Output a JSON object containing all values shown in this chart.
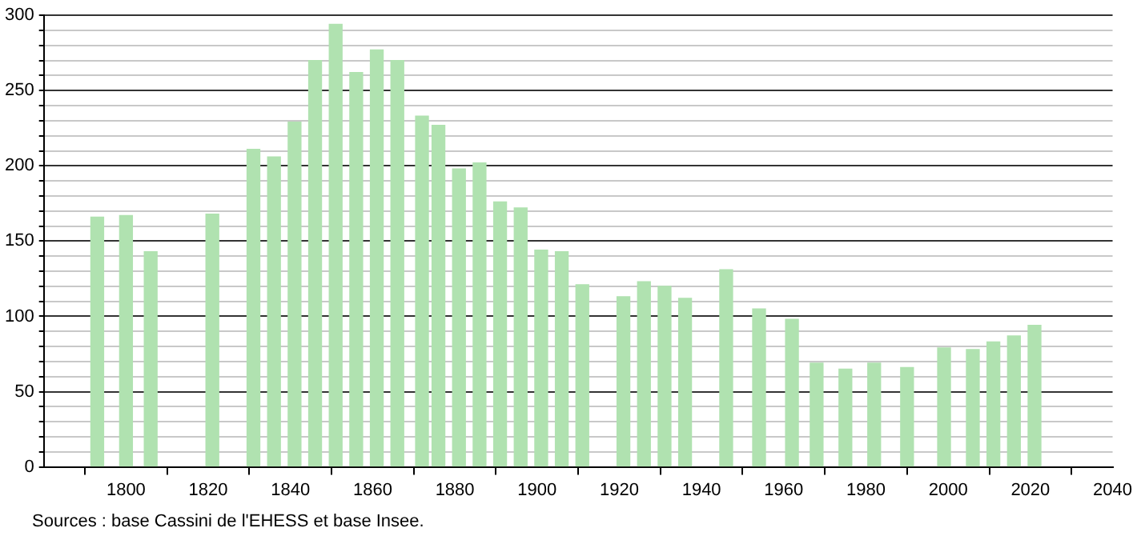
{
  "chart_data": {
    "type": "bar",
    "x": [
      1793,
      1800,
      1806,
      1821,
      1831,
      1836,
      1841,
      1846,
      1851,
      1856,
      1861,
      1866,
      1872,
      1876,
      1881,
      1886,
      1891,
      1896,
      1901,
      1906,
      1911,
      1921,
      1926,
      1931,
      1936,
      1946,
      1954,
      1962,
      1968,
      1975,
      1982,
      1990,
      1999,
      2006,
      2011,
      2016,
      2021
    ],
    "values": [
      166,
      167,
      143,
      168,
      211,
      206,
      229,
      270,
      294,
      262,
      277,
      270,
      233,
      227,
      198,
      202,
      176,
      172,
      144,
      143,
      121,
      113,
      123,
      120,
      112,
      131,
      105,
      98,
      69,
      65,
      69,
      66,
      79,
      78,
      83,
      87,
      94
    ],
    "color": "#b0e2b0",
    "xlim": [
      1780,
      2040
    ],
    "xticks": [
      1800,
      1820,
      1840,
      1860,
      1880,
      1900,
      1920,
      1940,
      1960,
      1980,
      2000,
      2020,
      2040
    ],
    "ylim": [
      0,
      300
    ],
    "yticks": [
      0,
      {
        "value": 10,
        "label": null
      },
      {
        "value": 20,
        "label": null
      },
      {
        "value": 30,
        "label": null
      },
      {
        "value": 40,
        "label": null
      },
      50,
      {
        "value": 60,
        "label": null
      },
      {
        "value": 70,
        "label": null
      },
      {
        "value": 80,
        "label": null
      },
      {
        "value": 90,
        "label": null
      },
      100,
      {
        "value": 110,
        "label": null
      },
      {
        "value": 120,
        "label": null
      },
      {
        "value": 130,
        "label": null
      },
      {
        "value": 140,
        "label": null
      },
      150,
      {
        "value": 160,
        "label": null
      },
      {
        "value": 170,
        "label": null
      },
      {
        "value": 180,
        "label": null
      },
      {
        "value": 190,
        "label": null
      },
      200,
      {
        "value": 210,
        "label": null
      },
      {
        "value": 220,
        "label": null
      },
      {
        "value": 230,
        "label": null
      },
      {
        "value": 240,
        "label": null
      },
      250,
      {
        "value": 260,
        "label": null
      },
      {
        "value": 270,
        "label": null
      },
      {
        "value": 280,
        "label": null
      },
      {
        "value": 290,
        "label": null
      },
      300
    ],
    "grid": "y",
    "annotations": [
      "Sources : base Cassini de l'EHESS et base Insee."
    ]
  }
}
